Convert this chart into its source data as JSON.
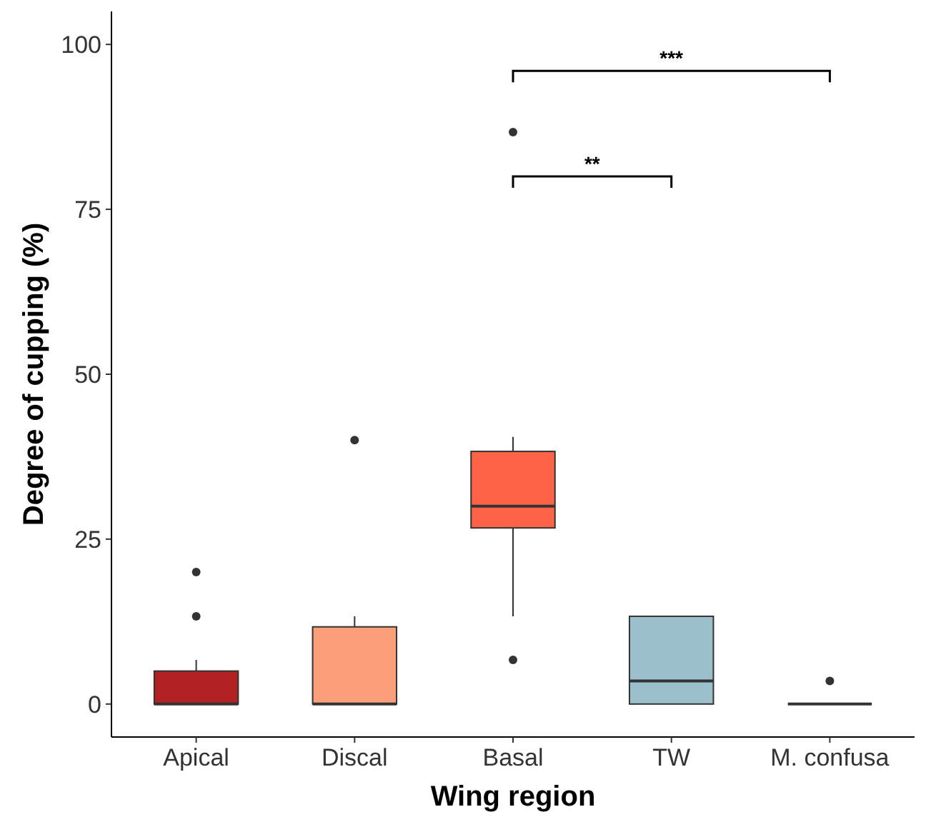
{
  "chart_data": {
    "type": "box",
    "xlabel": "Wing region",
    "ylabel": "Degree of cupping (%)",
    "categories": [
      "Apical",
      "Discal",
      "Basal",
      "TW",
      "M. confusa"
    ],
    "colors": [
      "#b22222",
      "#fa9f7a",
      "#ff6347",
      "#9bbfcc",
      "#333333"
    ],
    "boxes": [
      {
        "low": 0,
        "q1": 0,
        "median": 0,
        "q3": 5,
        "high": 6.7,
        "outliers": [
          13.3,
          20
        ]
      },
      {
        "low": 0,
        "q1": 0,
        "median": 0,
        "q3": 11.7,
        "high": 13.3,
        "outliers": [
          40
        ]
      },
      {
        "low": 13.3,
        "q1": 26.7,
        "median": 30,
        "q3": 38.3,
        "high": 40.5,
        "outliers": [
          86.7,
          6.7
        ]
      },
      {
        "low": 0,
        "q1": 0,
        "median": 3.5,
        "q3": 13.3,
        "high": 13.3
      },
      {
        "low": 0,
        "q1": 0,
        "median": 0,
        "q3": 0,
        "high": 0,
        "outliers": [
          3.5
        ]
      }
    ],
    "ylim": [
      -5,
      105
    ],
    "yticks": [
      0,
      25,
      50,
      75,
      100
    ],
    "grid": false,
    "annotations": [
      "**",
      "***"
    ]
  }
}
